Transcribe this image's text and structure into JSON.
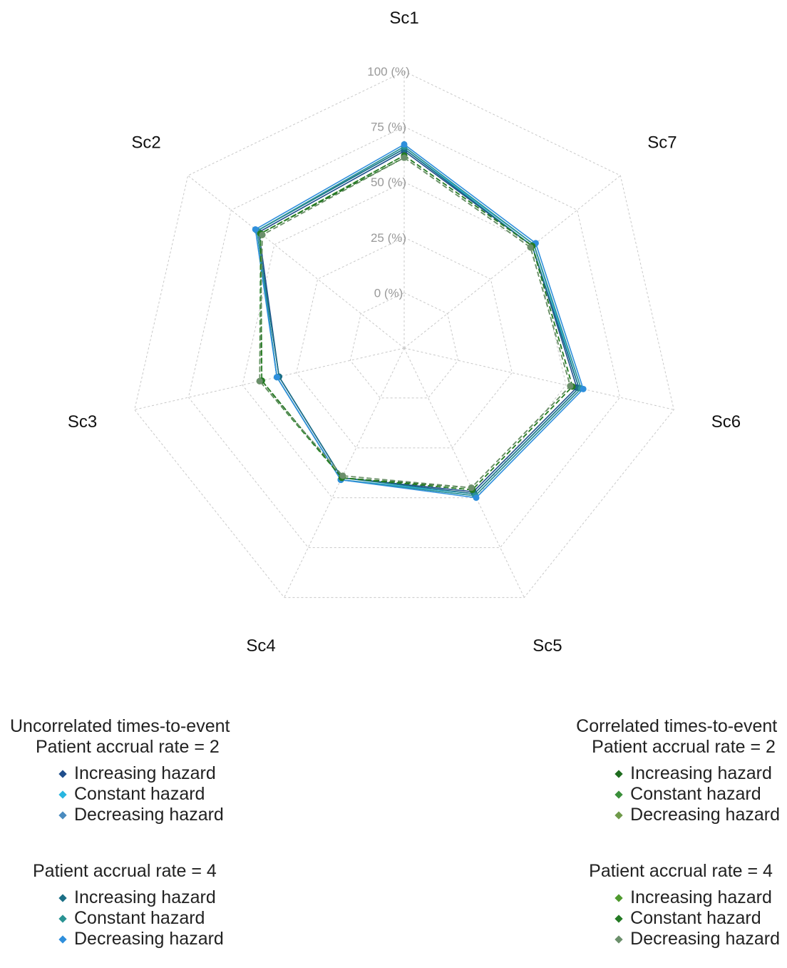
{
  "chart_data": {
    "type": "radar",
    "title": "",
    "axes": [
      "Sc1",
      "Sc7",
      "Sc6",
      "Sc5",
      "Sc4",
      "Sc3",
      "Sc2"
    ],
    "ticks": [
      "0 (%)",
      "25 (%)",
      "50 (%)",
      "75 (%)",
      "100 (%)"
    ],
    "rlim": [
      -25,
      100
    ],
    "grid": true,
    "series": [
      {
        "name": "Increasing hazard",
        "group": "Uncorrelated times-to-event",
        "accrual": "Patient accrual rate = 2",
        "color": "#1f4e8c",
        "dash": false,
        "values": {
          "Sc1": 64,
          "Sc7": 49,
          "Sc6": 55,
          "Sc5": 47,
          "Sc4": 40,
          "Sc3": 33,
          "Sc2": 59
        }
      },
      {
        "name": "Constant hazard",
        "group": "Uncorrelated times-to-event",
        "accrual": "Patient accrual rate = 2",
        "color": "#29b6e0",
        "dash": false,
        "values": {
          "Sc1": 65,
          "Sc7": 50,
          "Sc6": 56,
          "Sc5": 48,
          "Sc4": 41,
          "Sc3": 34,
          "Sc2": 60
        }
      },
      {
        "name": "Decreasing hazard",
        "group": "Uncorrelated times-to-event",
        "accrual": "Patient accrual rate = 2",
        "color": "#4a8bbf",
        "dash": false,
        "values": {
          "Sc1": 66,
          "Sc7": 50,
          "Sc6": 57,
          "Sc5": 49,
          "Sc4": 41,
          "Sc3": 34,
          "Sc2": 60
        }
      },
      {
        "name": "Increasing hazard",
        "group": "Uncorrelated times-to-event",
        "accrual": "Patient accrual rate = 4",
        "color": "#1b6f86",
        "dash": false,
        "values": {
          "Sc1": 65,
          "Sc7": 49,
          "Sc6": 56,
          "Sc5": 48,
          "Sc4": 40,
          "Sc3": 33,
          "Sc2": 60
        }
      },
      {
        "name": "Constant hazard",
        "group": "Uncorrelated times-to-event",
        "accrual": "Patient accrual rate = 4",
        "color": "#2a9393",
        "dash": false,
        "values": {
          "Sc1": 66,
          "Sc7": 50,
          "Sc6": 57,
          "Sc5": 49,
          "Sc4": 41,
          "Sc3": 34,
          "Sc2": 60
        }
      },
      {
        "name": "Decreasing hazard",
        "group": "Uncorrelated times-to-event",
        "accrual": "Patient accrual rate = 4",
        "color": "#2f8fdc",
        "dash": false,
        "values": {
          "Sc1": 67,
          "Sc7": 51,
          "Sc6": 58,
          "Sc5": 50,
          "Sc4": 41,
          "Sc3": 34,
          "Sc2": 61
        }
      },
      {
        "name": "Increasing hazard",
        "group": "Correlated times-to-event",
        "accrual": "Patient accrual rate = 2",
        "color": "#1e6b1e",
        "dash": true,
        "values": {
          "Sc1": 61,
          "Sc7": 48,
          "Sc6": 52,
          "Sc5": 45,
          "Sc4": 40,
          "Sc3": 41,
          "Sc2": 58
        }
      },
      {
        "name": "Constant hazard",
        "group": "Correlated times-to-event",
        "accrual": "Patient accrual rate = 2",
        "color": "#3a8f3a",
        "dash": true,
        "values": {
          "Sc1": 62,
          "Sc7": 49,
          "Sc6": 53,
          "Sc5": 46,
          "Sc4": 40,
          "Sc3": 42,
          "Sc2": 58
        }
      },
      {
        "name": "Decreasing hazard",
        "group": "Correlated times-to-event",
        "accrual": "Patient accrual rate = 2",
        "color": "#6f9a4a",
        "dash": true,
        "values": {
          "Sc1": 61,
          "Sc7": 48,
          "Sc6": 52,
          "Sc5": 45,
          "Sc4": 39,
          "Sc3": 42,
          "Sc2": 57
        }
      },
      {
        "name": "Increasing hazard",
        "group": "Correlated times-to-event",
        "accrual": "Patient accrual rate = 4",
        "color": "#4f9a2e",
        "dash": true,
        "values": {
          "Sc1": 62,
          "Sc7": 49,
          "Sc6": 53,
          "Sc5": 46,
          "Sc4": 40,
          "Sc3": 41,
          "Sc2": 58
        }
      },
      {
        "name": "Constant hazard",
        "group": "Correlated times-to-event",
        "accrual": "Patient accrual rate = 4",
        "color": "#237a23",
        "dash": true,
        "values": {
          "Sc1": 62,
          "Sc7": 49,
          "Sc6": 53,
          "Sc5": 46,
          "Sc4": 40,
          "Sc3": 41,
          "Sc2": 58
        }
      },
      {
        "name": "Decreasing hazard",
        "group": "Correlated times-to-event",
        "accrual": "Patient accrual rate = 4",
        "color": "#6b8f6b",
        "dash": true,
        "values": {
          "Sc1": 61,
          "Sc7": 48,
          "Sc6": 52,
          "Sc5": 45,
          "Sc4": 39,
          "Sc3": 42,
          "Sc2": 57
        }
      }
    ]
  },
  "legend": {
    "left": {
      "header1": "Uncorrelated times-to-event",
      "header2": "Patient accrual rate = 2",
      "items1": [
        {
          "label": "Increasing hazard",
          "color": "#1f4e8c"
        },
        {
          "label": "Constant hazard",
          "color": "#29b6e0"
        },
        {
          "label": "Decreasing hazard",
          "color": "#4a8bbf"
        }
      ],
      "header3": "Patient accrual rate = 4",
      "items2": [
        {
          "label": "Increasing hazard",
          "color": "#1b6f86"
        },
        {
          "label": "Constant hazard",
          "color": "#2a9393"
        },
        {
          "label": "Decreasing hazard",
          "color": "#2f8fdc"
        }
      ]
    },
    "right": {
      "header1": "Correlated times-to-event",
      "header2": "Patient accrual rate = 2",
      "items1": [
        {
          "label": "Increasing hazard",
          "color": "#1e6b1e"
        },
        {
          "label": "Constant hazard",
          "color": "#3a8f3a"
        },
        {
          "label": "Decreasing hazard",
          "color": "#6f9a4a"
        }
      ],
      "header3": "Patient accrual rate = 4",
      "items2": [
        {
          "label": "Increasing hazard",
          "color": "#4f9a2e"
        },
        {
          "label": "Constant hazard",
          "color": "#237a23"
        },
        {
          "label": "Decreasing hazard",
          "color": "#6b8f6b"
        }
      ]
    }
  }
}
